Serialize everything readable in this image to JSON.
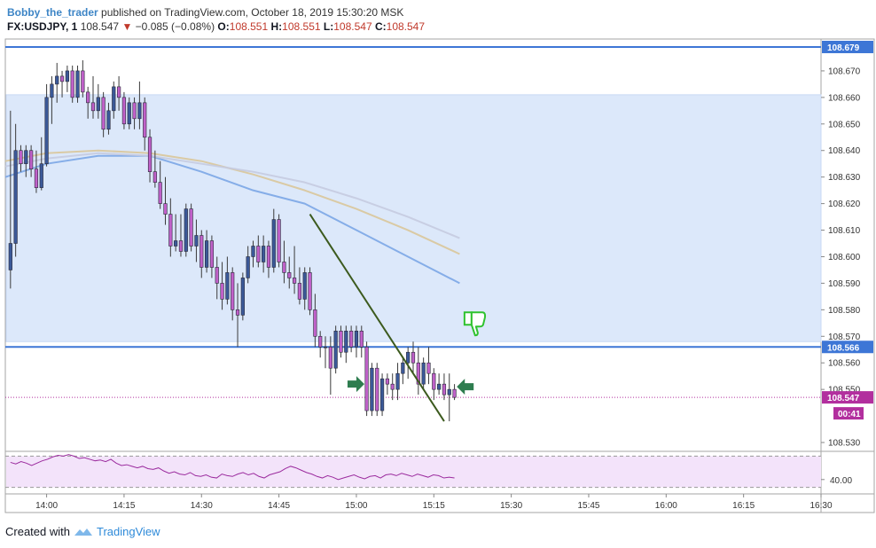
{
  "header": {
    "author": "Bobby_the_trader",
    "published": "published on TradingView.com, October 18, 2019 15:30:20 MSK",
    "symbol": "FX:USDJPY, 1",
    "last": "108.547",
    "change_arrow": "▼",
    "change": "−0.085 (−0.08%)",
    "o_label": "O:",
    "o_value": "108.551",
    "h_label": "H:",
    "h_value": "108.551",
    "l_label": "L:",
    "l_value": "108.547",
    "c_label": "C:",
    "c_value": "108.547"
  },
  "footer": {
    "created_with": "Created with",
    "brand": "TradingView"
  },
  "chart_data": {
    "type": "candlestick",
    "timeframe_minutes": 1,
    "price_axis": {
      "ylim": [
        108.527,
        108.682
      ],
      "ticks": [
        "108.670",
        "108.660",
        "108.650",
        "108.640",
        "108.630",
        "108.620",
        "108.610",
        "108.600",
        "108.590",
        "108.580",
        "108.570",
        "108.560",
        "108.550",
        "108.530"
      ]
    },
    "time_axis": {
      "xlim": [
        "13:52",
        "16:30"
      ],
      "ticks": [
        "14:00",
        "14:15",
        "14:30",
        "14:45",
        "15:00",
        "15:15",
        "15:30",
        "15:45",
        "16:00",
        "16:15",
        "16:30"
      ]
    },
    "candles": [
      {
        "t": "13:53",
        "o": 108.595,
        "h": 108.655,
        "l": 108.588,
        "c": 108.605
      },
      {
        "t": "13:54",
        "o": 108.605,
        "h": 108.65,
        "l": 108.6,
        "c": 108.64
      },
      {
        "t": "13:55",
        "o": 108.64,
        "h": 108.642,
        "l": 108.632,
        "c": 108.635
      },
      {
        "t": "13:56",
        "o": 108.635,
        "h": 108.642,
        "l": 108.63,
        "c": 108.64
      },
      {
        "t": "13:57",
        "o": 108.64,
        "h": 108.642,
        "l": 108.63,
        "c": 108.633
      },
      {
        "t": "13:58",
        "o": 108.633,
        "h": 108.64,
        "l": 108.624,
        "c": 108.626
      },
      {
        "t": "13:59",
        "o": 108.626,
        "h": 108.645,
        "l": 108.625,
        "c": 108.635
      },
      {
        "t": "14:00",
        "o": 108.635,
        "h": 108.665,
        "l": 108.634,
        "c": 108.66
      },
      {
        "t": "14:01",
        "o": 108.66,
        "h": 108.668,
        "l": 108.65,
        "c": 108.665
      },
      {
        "t": "14:02",
        "o": 108.665,
        "h": 108.673,
        "l": 108.658,
        "c": 108.668
      },
      {
        "t": "14:03",
        "o": 108.668,
        "h": 108.67,
        "l": 108.66,
        "c": 108.666
      },
      {
        "t": "14:04",
        "o": 108.666,
        "h": 108.672,
        "l": 108.662,
        "c": 108.67
      },
      {
        "t": "14:05",
        "o": 108.67,
        "h": 108.672,
        "l": 108.658,
        "c": 108.66
      },
      {
        "t": "14:06",
        "o": 108.66,
        "h": 108.672,
        "l": 108.658,
        "c": 108.67
      },
      {
        "t": "14:07",
        "o": 108.67,
        "h": 108.674,
        "l": 108.66,
        "c": 108.662
      },
      {
        "t": "14:08",
        "o": 108.662,
        "h": 108.664,
        "l": 108.652,
        "c": 108.658
      },
      {
        "t": "14:09",
        "o": 108.658,
        "h": 108.668,
        "l": 108.652,
        "c": 108.655
      },
      {
        "t": "14:10",
        "o": 108.655,
        "h": 108.665,
        "l": 108.652,
        "c": 108.66
      },
      {
        "t": "14:11",
        "o": 108.66,
        "h": 108.662,
        "l": 108.645,
        "c": 108.648
      },
      {
        "t": "14:12",
        "o": 108.648,
        "h": 108.658,
        "l": 108.646,
        "c": 108.655
      },
      {
        "t": "14:13",
        "o": 108.655,
        "h": 108.666,
        "l": 108.652,
        "c": 108.664
      },
      {
        "t": "14:14",
        "o": 108.664,
        "h": 108.668,
        "l": 108.655,
        "c": 108.66
      },
      {
        "t": "14:15",
        "o": 108.66,
        "h": 108.662,
        "l": 108.648,
        "c": 108.65
      },
      {
        "t": "14:16",
        "o": 108.65,
        "h": 108.66,
        "l": 108.648,
        "c": 108.658
      },
      {
        "t": "14:17",
        "o": 108.658,
        "h": 108.66,
        "l": 108.648,
        "c": 108.652
      },
      {
        "t": "14:18",
        "o": 108.652,
        "h": 108.666,
        "l": 108.648,
        "c": 108.658
      },
      {
        "t": "14:19",
        "o": 108.658,
        "h": 108.66,
        "l": 108.64,
        "c": 108.645
      },
      {
        "t": "14:20",
        "o": 108.645,
        "h": 108.648,
        "l": 108.628,
        "c": 108.632
      },
      {
        "t": "14:21",
        "o": 108.632,
        "h": 108.64,
        "l": 108.626,
        "c": 108.628
      },
      {
        "t": "14:22",
        "o": 108.628,
        "h": 108.636,
        "l": 108.618,
        "c": 108.62
      },
      {
        "t": "14:23",
        "o": 108.62,
        "h": 108.63,
        "l": 108.612,
        "c": 108.616
      },
      {
        "t": "14:24",
        "o": 108.616,
        "h": 108.622,
        "l": 108.6,
        "c": 108.604
      },
      {
        "t": "14:25",
        "o": 108.604,
        "h": 108.616,
        "l": 108.602,
        "c": 108.606
      },
      {
        "t": "14:26",
        "o": 108.606,
        "h": 108.616,
        "l": 108.6,
        "c": 108.602
      },
      {
        "t": "14:27",
        "o": 108.602,
        "h": 108.62,
        "l": 108.6,
        "c": 108.618
      },
      {
        "t": "14:28",
        "o": 108.618,
        "h": 108.62,
        "l": 108.602,
        "c": 108.604
      },
      {
        "t": "14:29",
        "o": 108.604,
        "h": 108.614,
        "l": 108.598,
        "c": 108.608
      },
      {
        "t": "14:30",
        "o": 108.608,
        "h": 108.61,
        "l": 108.592,
        "c": 108.596
      },
      {
        "t": "14:31",
        "o": 108.596,
        "h": 108.61,
        "l": 108.594,
        "c": 108.606
      },
      {
        "t": "14:32",
        "o": 108.606,
        "h": 108.608,
        "l": 108.592,
        "c": 108.596
      },
      {
        "t": "14:33",
        "o": 108.596,
        "h": 108.6,
        "l": 108.584,
        "c": 108.59
      },
      {
        "t": "14:34",
        "o": 108.59,
        "h": 108.598,
        "l": 108.58,
        "c": 108.584
      },
      {
        "t": "14:35",
        "o": 108.584,
        "h": 108.6,
        "l": 108.582,
        "c": 108.594
      },
      {
        "t": "14:36",
        "o": 108.594,
        "h": 108.596,
        "l": 108.576,
        "c": 108.58
      },
      {
        "t": "14:37",
        "o": 108.58,
        "h": 108.59,
        "l": 108.566,
        "c": 108.578
      },
      {
        "t": "14:38",
        "o": 108.578,
        "h": 108.594,
        "l": 108.576,
        "c": 108.592
      },
      {
        "t": "14:39",
        "o": 108.592,
        "h": 108.604,
        "l": 108.59,
        "c": 108.6
      },
      {
        "t": "14:40",
        "o": 108.6,
        "h": 108.606,
        "l": 108.596,
        "c": 108.604
      },
      {
        "t": "14:41",
        "o": 108.604,
        "h": 108.608,
        "l": 108.596,
        "c": 108.598
      },
      {
        "t": "14:42",
        "o": 108.598,
        "h": 108.608,
        "l": 108.594,
        "c": 108.604
      },
      {
        "t": "14:43",
        "o": 108.604,
        "h": 108.606,
        "l": 108.592,
        "c": 108.596
      },
      {
        "t": "14:44",
        "o": 108.596,
        "h": 108.618,
        "l": 108.594,
        "c": 108.614
      },
      {
        "t": "14:45",
        "o": 108.614,
        "h": 108.616,
        "l": 108.596,
        "c": 108.598
      },
      {
        "t": "14:46",
        "o": 108.598,
        "h": 108.606,
        "l": 108.59,
        "c": 108.594
      },
      {
        "t": "14:47",
        "o": 108.594,
        "h": 108.6,
        "l": 108.588,
        "c": 108.592
      },
      {
        "t": "14:48",
        "o": 108.592,
        "h": 108.604,
        "l": 108.586,
        "c": 108.59
      },
      {
        "t": "14:49",
        "o": 108.59,
        "h": 108.596,
        "l": 108.582,
        "c": 108.584
      },
      {
        "t": "14:50",
        "o": 108.584,
        "h": 108.596,
        "l": 108.58,
        "c": 108.594
      },
      {
        "t": "14:51",
        "o": 108.594,
        "h": 108.596,
        "l": 108.578,
        "c": 108.58
      },
      {
        "t": "14:52",
        "o": 108.58,
        "h": 108.586,
        "l": 108.566,
        "c": 108.57
      },
      {
        "t": "14:53",
        "o": 108.57,
        "h": 108.572,
        "l": 108.562,
        "c": 108.566
      },
      {
        "t": "14:54",
        "o": 108.566,
        "h": 108.57,
        "l": 108.558,
        "c": 108.566
      },
      {
        "t": "14:55",
        "o": 108.566,
        "h": 108.57,
        "l": 108.548,
        "c": 108.558
      },
      {
        "t": "14:56",
        "o": 108.558,
        "h": 108.574,
        "l": 108.556,
        "c": 108.572
      },
      {
        "t": "14:57",
        "o": 108.572,
        "h": 108.574,
        "l": 108.562,
        "c": 108.564
      },
      {
        "t": "14:58",
        "o": 108.564,
        "h": 108.574,
        "l": 108.56,
        "c": 108.572
      },
      {
        "t": "14:59",
        "o": 108.572,
        "h": 108.574,
        "l": 108.564,
        "c": 108.566
      },
      {
        "t": "15:00",
        "o": 108.566,
        "h": 108.574,
        "l": 108.562,
        "c": 108.572
      },
      {
        "t": "15:01",
        "o": 108.572,
        "h": 108.574,
        "l": 108.562,
        "c": 108.566
      },
      {
        "t": "15:02",
        "o": 108.566,
        "h": 108.568,
        "l": 108.54,
        "c": 108.542
      },
      {
        "t": "15:03",
        "o": 108.542,
        "h": 108.56,
        "l": 108.54,
        "c": 108.558
      },
      {
        "t": "15:04",
        "o": 108.558,
        "h": 108.56,
        "l": 108.54,
        "c": 108.542
      },
      {
        "t": "15:05",
        "o": 108.542,
        "h": 108.556,
        "l": 108.54,
        "c": 108.554
      },
      {
        "t": "15:06",
        "o": 108.554,
        "h": 108.556,
        "l": 108.548,
        "c": 108.552
      },
      {
        "t": "15:07",
        "o": 108.552,
        "h": 108.556,
        "l": 108.546,
        "c": 108.55
      },
      {
        "t": "15:08",
        "o": 108.55,
        "h": 108.56,
        "l": 108.546,
        "c": 108.556
      },
      {
        "t": "15:09",
        "o": 108.556,
        "h": 108.562,
        "l": 108.552,
        "c": 108.56
      },
      {
        "t": "15:10",
        "o": 108.56,
        "h": 108.566,
        "l": 108.554,
        "c": 108.564
      },
      {
        "t": "15:11",
        "o": 108.564,
        "h": 108.568,
        "l": 108.556,
        "c": 108.56
      },
      {
        "t": "15:12",
        "o": 108.56,
        "h": 108.566,
        "l": 108.548,
        "c": 108.552
      },
      {
        "t": "15:13",
        "o": 108.552,
        "h": 108.562,
        "l": 108.55,
        "c": 108.56
      },
      {
        "t": "15:14",
        "o": 108.56,
        "h": 108.566,
        "l": 108.552,
        "c": 108.556
      },
      {
        "t": "15:15",
        "o": 108.556,
        "h": 108.558,
        "l": 108.546,
        "c": 108.55
      },
      {
        "t": "15:16",
        "o": 108.55,
        "h": 108.556,
        "l": 108.548,
        "c": 108.552
      },
      {
        "t": "15:17",
        "o": 108.552,
        "h": 108.556,
        "l": 108.546,
        "c": 108.548
      },
      {
        "t": "15:18",
        "o": 108.548,
        "h": 108.556,
        "l": 108.538,
        "c": 108.55
      },
      {
        "t": "15:19",
        "o": 108.55,
        "h": 108.552,
        "l": 108.546,
        "c": 108.547
      }
    ],
    "moving_averages": [
      {
        "color": "#7ba6e6",
        "values": [
          108.63,
          108.635,
          108.638,
          108.638,
          108.632,
          108.625,
          108.62,
          108.61,
          108.6,
          108.59
        ]
      },
      {
        "color": "#d9c69a",
        "values": [
          108.636,
          108.639,
          108.64,
          108.639,
          108.636,
          108.631,
          108.625,
          108.618,
          108.61,
          108.601
        ]
      },
      {
        "color": "#c5cbe0",
        "values": [
          108.634,
          108.637,
          108.639,
          108.638,
          108.635,
          108.632,
          108.628,
          108.622,
          108.615,
          108.607
        ]
      }
    ],
    "ma_times": [
      "13:52",
      "14:00",
      "14:10",
      "14:20",
      "14:30",
      "14:40",
      "14:50",
      "15:00",
      "15:10",
      "15:20"
    ],
    "zone": {
      "from": 108.568,
      "to": 108.661
    },
    "hlines": [
      {
        "price": 108.679,
        "label": "108.679",
        "color": "#3d76d6"
      },
      {
        "price": 108.566,
        "label": "108.566",
        "color": "#3d76d6"
      }
    ],
    "last_price": {
      "price": 108.547,
      "label": "108.547",
      "countdown": "00:41",
      "color": "#b22f9e"
    },
    "trend_line": {
      "from": {
        "t": "14:51",
        "p": 108.616
      },
      "to": {
        "t": "15:17",
        "p": 108.538
      },
      "color": "#3c5a1e"
    },
    "arrows": [
      {
        "t": "15:00",
        "p": 108.552,
        "dir": "right",
        "color": "#2e7d4f"
      },
      {
        "t": "15:21",
        "p": 108.551,
        "dir": "left",
        "color": "#2e7d4f"
      }
    ],
    "thumb_down": {
      "t": "15:23",
      "p": 108.575,
      "color": "#2fc22f"
    },
    "rsi": {
      "ylim": [
        25,
        75
      ],
      "ticks": [
        "40.00"
      ],
      "bands": [
        30,
        70
      ],
      "values": [
        62,
        60,
        63,
        61,
        58,
        61,
        64,
        66,
        69,
        71,
        70,
        72,
        70,
        67,
        68,
        66,
        64,
        65,
        63,
        66,
        61,
        58,
        59,
        57,
        55,
        57,
        54,
        53,
        55,
        51,
        48,
        50,
        47,
        46,
        49,
        45,
        44,
        46,
        43,
        42,
        47,
        45,
        44,
        47,
        49,
        46,
        48,
        44,
        42,
        46,
        48,
        50,
        54,
        57,
        55,
        52,
        49,
        47,
        44,
        42,
        45,
        43,
        40,
        42,
        44,
        46,
        43,
        41,
        44,
        45,
        42,
        46,
        47,
        45,
        48,
        46,
        44,
        47,
        45,
        43,
        46,
        45,
        42,
        43,
        42
      ]
    },
    "colors": {
      "up": "#3b5998",
      "down": "#c061c9",
      "wick": "#3a3a3a",
      "zone": "#dce8fa",
      "rsi_bg": "#f3e3fa",
      "rsi_line": "#9b2b9e"
    }
  }
}
